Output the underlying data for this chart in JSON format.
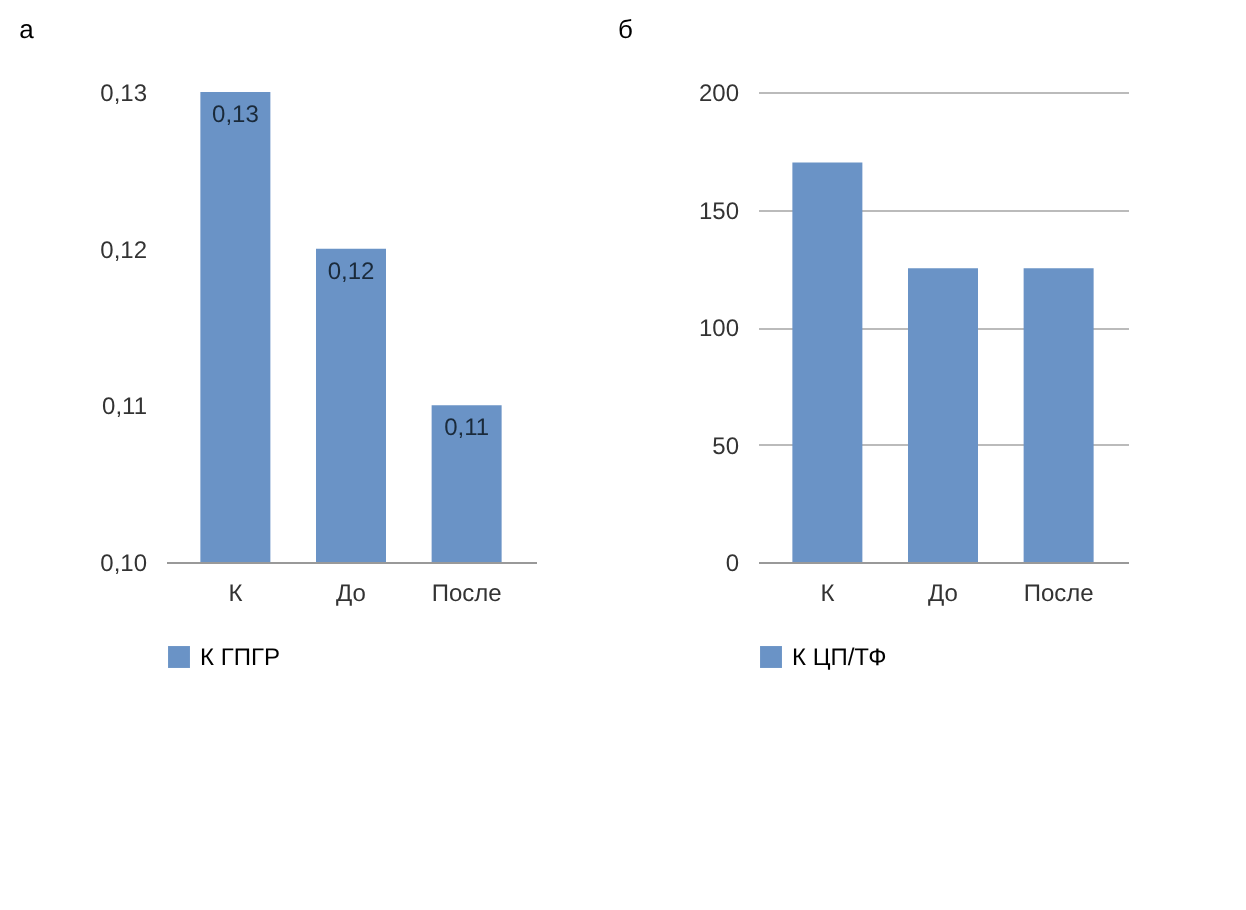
{
  "chart_data": [
    {
      "type": "bar",
      "title": "а",
      "categories": [
        "К",
        "До",
        "После"
      ],
      "series": [
        {
          "name": "К ГПГР",
          "color": "#6a93c6",
          "values": [
            0.13,
            0.12,
            0.11
          ],
          "value_labels": [
            "0,13",
            "0,12",
            "0,11"
          ]
        }
      ],
      "ylim": [
        0.1,
        0.13
      ],
      "yticks": [
        {
          "value": 0.1,
          "label": "0,10"
        },
        {
          "value": 0.11,
          "label": "0,11"
        },
        {
          "value": 0.12,
          "label": "0,12"
        },
        {
          "value": 0.13,
          "label": "0,13"
        }
      ],
      "grid": false,
      "legend": "bottom"
    },
    {
      "type": "bar",
      "title": "б",
      "categories": [
        "К",
        "До",
        "После"
      ],
      "series": [
        {
          "name": "К ЦП/ТФ",
          "color": "#6a93c6",
          "values": [
            170,
            125,
            125
          ]
        }
      ],
      "ylim": [
        0,
        200
      ],
      "yticks": [
        0,
        50,
        100,
        150,
        200
      ],
      "grid": "y",
      "legend": "bottom"
    }
  ]
}
